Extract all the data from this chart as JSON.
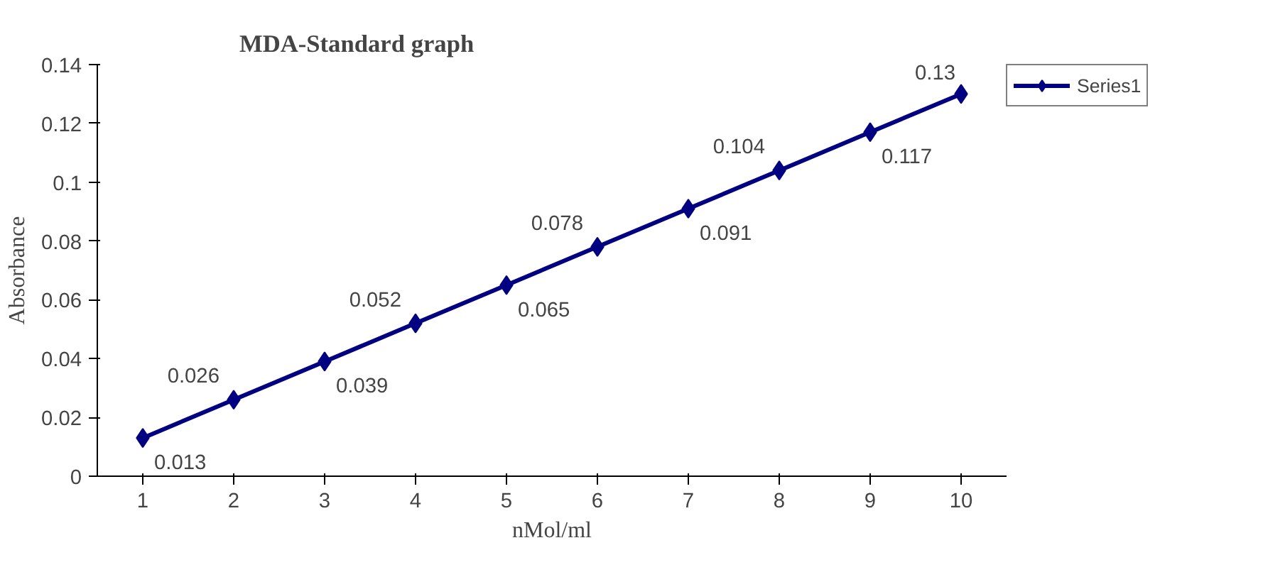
{
  "chart_data": {
    "type": "line",
    "title": "MDA-Standard graph",
    "xlabel": "nMol/ml",
    "ylabel": "Absorbance",
    "categories": [
      "1",
      "2",
      "3",
      "4",
      "5",
      "6",
      "7",
      "8",
      "9",
      "10"
    ],
    "series": [
      {
        "name": "Series1",
        "color": "#000080",
        "values": [
          0.013,
          0.026,
          0.039,
          0.052,
          0.065,
          0.078,
          0.091,
          0.104,
          0.117,
          0.13
        ]
      }
    ],
    "ylim": [
      0,
      0.14
    ],
    "yticks": [
      0,
      0.02,
      0.04,
      0.06,
      0.08,
      0.1,
      0.12,
      0.14
    ],
    "grid": false,
    "legend": "top right",
    "marker": "diamond",
    "line_style": "solid",
    "data_labels": true
  }
}
